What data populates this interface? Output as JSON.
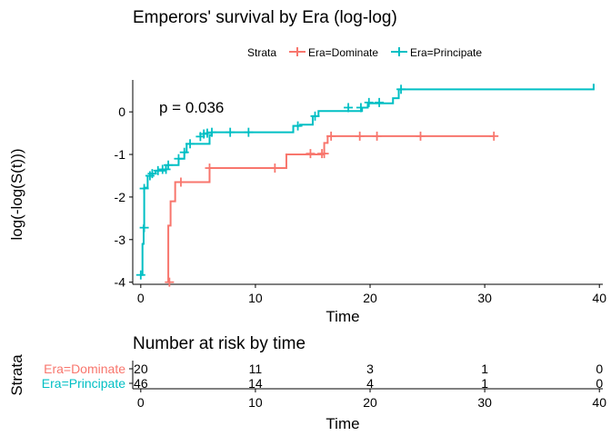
{
  "colors": {
    "Dominate": "#F8766D",
    "Principate": "#00BFC4",
    "axis": "#000000"
  },
  "chart_data": [
    {
      "type": "line",
      "subtype": "step",
      "title": "Emperors' survival by Era (log-log)",
      "xlabel": "Time",
      "ylabel": "log(-log(S(t)))",
      "xlim": [
        -0.7,
        40.3
      ],
      "ylim": [
        -4.05,
        0.75
      ],
      "xticks": [
        0,
        10,
        20,
        30,
        40
      ],
      "yticks": [
        -4,
        -3,
        -2,
        -1,
        0
      ],
      "legend": {
        "title": "Strata",
        "position": "top",
        "entries": [
          "Era=Dominate",
          "Era=Principate"
        ]
      },
      "annotation": "p = 0.036",
      "series": [
        {
          "name": "Era=Dominate",
          "color_key": "Dominate",
          "steps": [
            [
              2.3,
              -4.0
            ],
            [
              2.4,
              -2.67
            ],
            [
              2.6,
              -2.1
            ],
            [
              3.0,
              -1.65
            ],
            [
              6.0,
              -1.32
            ],
            [
              12.7,
              -1.0
            ],
            [
              16.0,
              -0.73
            ],
            [
              16.3,
              -0.57
            ],
            [
              30.8,
              -0.57
            ]
          ],
          "censored": [
            [
              2.5,
              -4.0
            ],
            [
              3.5,
              -1.65
            ],
            [
              6.0,
              -1.32
            ],
            [
              11.7,
              -1.32
            ],
            [
              14.8,
              -0.98
            ],
            [
              15.8,
              -0.98
            ],
            [
              16.0,
              -0.98
            ],
            [
              16.6,
              -0.57
            ],
            [
              19.1,
              -0.57
            ],
            [
              20.6,
              -0.57
            ],
            [
              24.4,
              -0.57
            ],
            [
              30.8,
              -0.57
            ]
          ]
        },
        {
          "name": "Era=Principate",
          "color_key": "Principate",
          "steps": [
            [
              0.0,
              -3.83
            ],
            [
              0.15,
              -3.1
            ],
            [
              0.25,
              -2.67
            ],
            [
              0.3,
              -1.78
            ],
            [
              0.6,
              -1.5
            ],
            [
              1.0,
              -1.45
            ],
            [
              1.3,
              -1.38
            ],
            [
              2.2,
              -1.25
            ],
            [
              3.3,
              -1.1
            ],
            [
              3.8,
              -0.95
            ],
            [
              4.0,
              -0.75
            ],
            [
              6.0,
              -0.55
            ],
            [
              6.2,
              -0.48
            ],
            [
              13.3,
              -0.33
            ],
            [
              13.9,
              -0.3
            ],
            [
              15.0,
              -0.1
            ],
            [
              15.5,
              0.02
            ],
            [
              19.3,
              0.1
            ],
            [
              19.8,
              0.2
            ],
            [
              22.0,
              0.32
            ],
            [
              22.5,
              0.53
            ],
            [
              39.5,
              0.66
            ]
          ],
          "censored": [
            [
              0.0,
              -3.83
            ],
            [
              0.3,
              -2.72
            ],
            [
              0.3,
              -1.8
            ],
            [
              0.8,
              -1.5
            ],
            [
              1.0,
              -1.45
            ],
            [
              1.5,
              -1.38
            ],
            [
              1.9,
              -1.35
            ],
            [
              2.2,
              -1.35
            ],
            [
              2.4,
              -1.25
            ],
            [
              3.3,
              -1.1
            ],
            [
              3.8,
              -0.95
            ],
            [
              4.3,
              -0.75
            ],
            [
              5.2,
              -0.58
            ],
            [
              5.5,
              -0.52
            ],
            [
              5.8,
              -0.5
            ],
            [
              6.2,
              -0.48
            ],
            [
              7.8,
              -0.48
            ],
            [
              9.4,
              -0.48
            ],
            [
              13.7,
              -0.33
            ],
            [
              15.2,
              -0.1
            ],
            [
              18.1,
              0.1
            ],
            [
              19.2,
              0.1
            ],
            [
              19.9,
              0.22
            ],
            [
              20.8,
              0.22
            ],
            [
              22.7,
              0.53
            ]
          ]
        }
      ]
    },
    {
      "type": "table",
      "title": "Number at risk by time",
      "xlabel": "Time",
      "ylabel": "Strata",
      "xlim": [
        -0.7,
        40.3
      ],
      "xticks": [
        0,
        10,
        20,
        30,
        40
      ],
      "times": [
        0,
        10,
        20,
        30,
        40
      ],
      "rows": [
        {
          "label": "Era=Dominate",
          "color_key": "Dominate",
          "values": [
            "20",
            "11",
            "3",
            "1",
            "0"
          ]
        },
        {
          "label": "Era=Principate",
          "color_key": "Principate",
          "values": [
            "46",
            "14",
            "4",
            "1",
            "0"
          ]
        }
      ]
    }
  ]
}
